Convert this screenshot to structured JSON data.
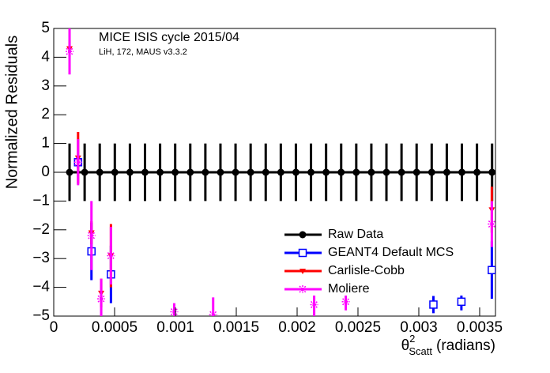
{
  "chart_data": {
    "type": "scatter",
    "title": "MICE ISIS cycle 2015/04",
    "subtitle": "LiH, 172, MAUS v3.3.2",
    "y_label": "Normalized Residuals",
    "x_label": {
      "symbol": "θ",
      "sup": "2",
      "sub": "Scatt",
      "unit": "(radians)"
    },
    "xlim": [
      0,
      0.00363
    ],
    "ylim": [
      -5,
      5
    ],
    "xticks": [
      0,
      0.0005,
      0.001,
      0.0015,
      0.002,
      0.0025,
      0.003,
      0.0035
    ],
    "yticks": [
      {
        "value": -5,
        "label": "−5"
      },
      {
        "value": -4,
        "label": "−4"
      },
      {
        "value": -3,
        "label": "−3"
      },
      {
        "value": -2,
        "label": "−2"
      },
      {
        "value": -1,
        "label": "−1"
      },
      0,
      1,
      2,
      3,
      4,
      5
    ],
    "legend": "lower right",
    "series": [
      {
        "name": "Raw Data",
        "color": "#000000",
        "marker": "circle",
        "x": [
          0.00013,
          0.000254,
          0.000378,
          0.000502,
          0.000626,
          0.00075,
          0.000874,
          0.000998,
          0.001122,
          0.001246,
          0.00137,
          0.001494,
          0.001618,
          0.001742,
          0.001866,
          0.00199,
          0.002114,
          0.002238,
          0.002362,
          0.002486,
          0.00261,
          0.002734,
          0.002858,
          0.002982,
          0.003106,
          0.00323,
          0.003354,
          0.003478,
          0.003602
        ],
        "values": [
          0,
          0,
          0,
          0,
          0,
          0,
          0,
          0,
          0,
          0,
          0,
          0,
          0,
          0,
          0,
          0,
          0,
          0,
          0,
          0,
          0,
          0,
          0,
          0,
          0,
          0,
          0,
          0,
          0
        ],
        "errors": [
          1,
          1,
          1,
          1,
          1,
          1,
          1,
          1,
          1,
          1,
          1,
          1,
          1,
          1,
          1,
          1,
          1,
          1,
          1,
          1,
          1,
          1,
          1,
          1,
          1,
          1,
          1,
          1,
          1
        ]
      },
      {
        "name": "GEANT4 Default MCS",
        "color": "#0000ff",
        "marker": "square",
        "x": [
          0.0002,
          0.00031,
          0.00047,
          0.00312,
          0.00335,
          0.0036
        ],
        "values": [
          0.35,
          -2.75,
          -3.55,
          -4.6,
          -4.5,
          -3.4
        ],
        "errors": [
          0.2,
          1,
          1,
          0.3,
          0.3,
          1
        ]
      },
      {
        "name": "Carlisle-Cobb",
        "color": "#ff0000",
        "marker": "triangle",
        "x": [
          0.00013,
          0.0002,
          0.00031,
          0.00039,
          0.00047,
          0.0036
        ],
        "values": [
          4.3,
          0.5,
          -2.1,
          -4.2,
          -2.9,
          -1.3
        ],
        "errors": [
          0.3,
          0.9,
          0.4,
          0.5,
          1.1,
          0.8
        ]
      },
      {
        "name": "Moliere",
        "color": "#ff00ff",
        "marker": "star",
        "x": [
          0.00013,
          0.0002,
          0.00031,
          0.00039,
          0.00047,
          0.00099,
          0.00131,
          0.00214,
          0.0024,
          0.0036
        ],
        "values": [
          4.2,
          0.35,
          -2.2,
          -4.4,
          -2.9,
          -4.85,
          -4.95,
          -4.6,
          -4.5,
          -1.8
        ],
        "errors": [
          0.8,
          0.8,
          1.2,
          0.7,
          1,
          0.3,
          0.6,
          0.5,
          0.3,
          0.8
        ]
      }
    ]
  }
}
